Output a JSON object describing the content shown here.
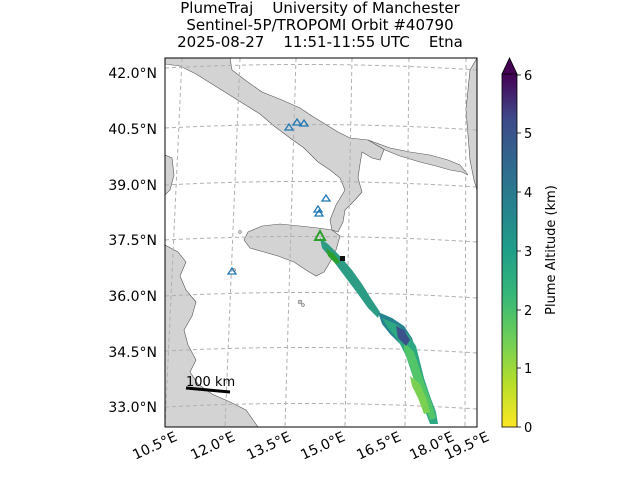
{
  "title": {
    "line1": "PlumeTraj    University of Manchester",
    "line2": "Sentinel-5P/TROPOMI Orbit #40790",
    "line3": "2025-08-27    11:51-11:55 UTC    Etna"
  },
  "map": {
    "lat_labels": [
      "42.0°N",
      "40.5°N",
      "39.0°N",
      "37.5°N",
      "36.0°N",
      "34.5°N",
      "33.0°N"
    ],
    "lon_labels": [
      "10.5°E",
      "12.0°E",
      "13.5°E",
      "15.0°E",
      "16.5°E",
      "18.0°E",
      "19.5°E"
    ],
    "scale_bar_label": "100 km",
    "land_color": "#d3d3d3",
    "gridline_color": "#b0b0b0",
    "volcano_marker_color": "#1f77b4",
    "source_volcano_color": "#2ca02c"
  },
  "colorbar": {
    "label": "Plume Altitude (km)",
    "ticks": [
      "0",
      "1",
      "2",
      "3",
      "4",
      "5",
      "6"
    ],
    "colormap": "viridis_r",
    "extend": "max"
  }
}
